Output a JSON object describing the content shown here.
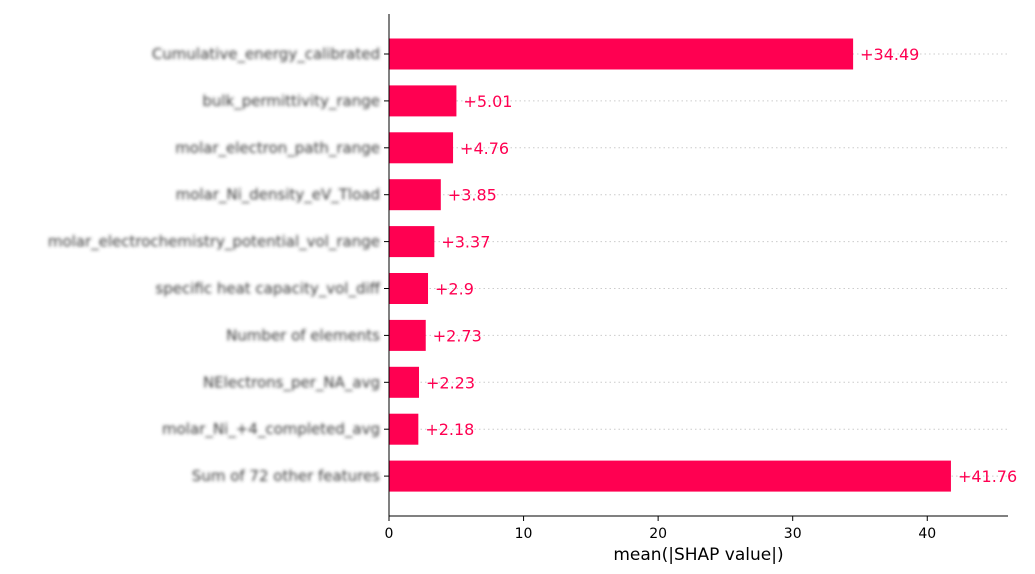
{
  "chart_data": {
    "type": "bar",
    "orientation": "horizontal",
    "categories": [
      "Cumulative_energy_calibrated",
      "bulk_permittivity_range",
      "molar_electron_path_range",
      "molar_Ni_density_eV_Tload",
      "molar_electrochemistry_potential_vol_range",
      "specific heat capacity_vol_diff",
      "Number of elements",
      "NElectrons_per_NA_avg",
      "molar_Ni_+4_completed_avg",
      "Sum of 72 other features"
    ],
    "values": [
      34.49,
      5.01,
      4.76,
      3.85,
      3.37,
      2.9,
      2.73,
      2.23,
      2.18,
      41.76
    ],
    "value_labels": [
      "+34.49",
      "+5.01",
      "+4.76",
      "+3.85",
      "+3.37",
      "+2.9",
      "+2.73",
      "+2.23",
      "+2.18",
      "+41.76"
    ],
    "x_ticks": [
      0,
      10,
      20,
      30,
      40
    ],
    "xlim": [
      0,
      46
    ],
    "xlabel": "mean(|SHAP value|)",
    "ylabel": "",
    "title": "",
    "grid": "dotted horizontal guide per row",
    "legend": "none",
    "colors": {
      "bar": "#ff0051",
      "label": "#ff0051",
      "axis": "#000000",
      "gridline": "#cccccc"
    }
  }
}
